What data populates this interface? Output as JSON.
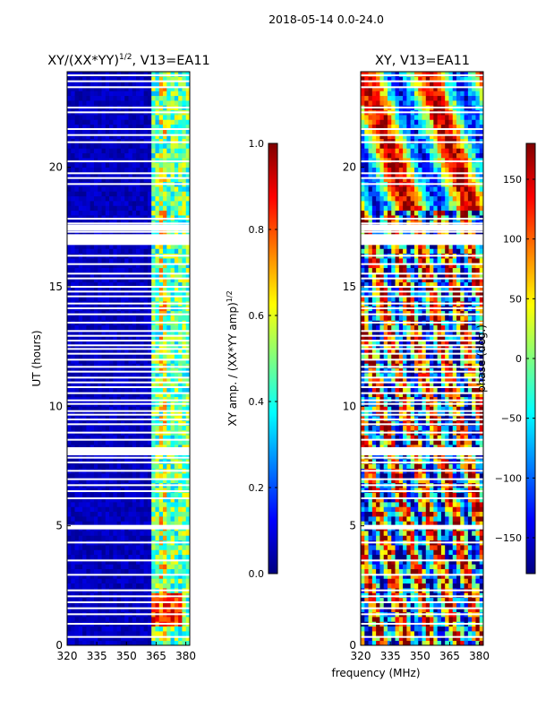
{
  "suptitle": "2018-05-14 0.0-24.0",
  "colors": {
    "jet": [
      "#00007f",
      "#0000ff",
      "#007fff",
      "#00ffff",
      "#7fff7f",
      "#ffff00",
      "#ff7f00",
      "#ff0000",
      "#7f0000"
    ]
  },
  "chart_data": [
    {
      "type": "heatmap",
      "title": "XY/(XX*YY)",
      "title_sup": "1/2",
      "title_suffix": ", V13=EA11",
      "xlabel": "",
      "ylabel": "UT (hours)",
      "xlim": [
        320,
        382
      ],
      "ylim": [
        0,
        24
      ],
      "xticks": [
        320,
        335,
        350,
        365,
        380
      ],
      "yticks": [
        0,
        5,
        10,
        15,
        20
      ],
      "colorbar": {
        "label": "XY amp. / (XX*YY amp)",
        "label_sup": "1/2",
        "range": [
          0.0,
          1.0
        ],
        "ticks": [
          "0.0",
          "0.2",
          "0.4",
          "0.6",
          "0.8",
          "1.0"
        ]
      },
      "value_range": [
        0.0,
        1.0
      ],
      "description_values": "near 0 below 360 MHz; 0.3-0.6 above 362 MHz; up to ~0.9 at 1-2 h"
    },
    {
      "type": "heatmap",
      "title": "XY, V13=EA11",
      "xlabel": "frequency (MHz)",
      "ylabel": "",
      "xlim": [
        320,
        382
      ],
      "ylim": [
        0,
        24
      ],
      "xticks": [
        320,
        335,
        350,
        365,
        380
      ],
      "yticks": [
        0,
        5,
        10,
        15,
        20
      ],
      "colorbar": {
        "label": "phase (deg.)",
        "range": [
          -180,
          180
        ],
        "ticks": [
          "−150",
          "−100",
          "−50",
          "0",
          "50",
          "100",
          "150"
        ]
      },
      "value_range": [
        -180,
        180
      ]
    }
  ],
  "gap_hours": [
    0.35,
    0.9,
    1.3,
    1.55,
    1.8,
    2.05,
    2.3,
    2.95,
    3.55,
    4.3,
    5.0,
    6.15,
    6.45,
    6.7,
    6.95,
    7.3,
    7.65,
    7.85,
    8.25,
    8.6,
    8.9,
    9.25,
    9.45,
    9.65,
    9.8,
    10.1,
    10.25,
    10.55,
    10.8,
    11.0,
    11.2,
    11.45,
    11.65,
    11.95,
    12.2,
    12.4,
    12.55,
    12.75,
    12.95,
    13.15,
    13.5,
    13.85,
    14.1,
    14.3,
    14.6,
    14.8,
    15.0,
    15.35,
    15.55,
    15.95,
    16.3,
    16.85,
    17.05,
    17.3,
    17.65,
    17.85,
    19.3,
    19.55,
    19.75,
    20.25,
    21.05,
    21.35,
    21.6,
    22.3,
    22.5,
    23.35,
    23.6,
    23.85
  ],
  "wide_gaps": [
    [
      16.75,
      17.2
    ],
    [
      7.95,
      8.25
    ],
    [
      17.35,
      17.6
    ],
    [
      4.85,
      5.0
    ]
  ]
}
